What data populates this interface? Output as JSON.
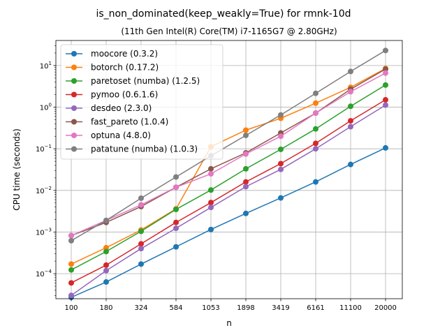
{
  "chart_data": {
    "type": "line",
    "title": "is_non_dominated(keep_weakly=True) for rmnk-10d",
    "subtitle": "(11th Gen Intel(R) Core(TM) i7-1165G7 @ 2.80GHz)",
    "xlabel": "n",
    "ylabel": "CPU time (seconds)",
    "y_scale": "log",
    "ylim": [
      2.5e-05,
      40
    ],
    "grid": true,
    "legend_position": "upper-left",
    "x": [
      100,
      180,
      324,
      584,
      1053,
      1898,
      3419,
      6161,
      11100,
      20000
    ],
    "x_tick_labels": [
      "100",
      "180",
      "324",
      "584",
      "1053",
      "1898",
      "3419",
      "6161",
      "11100",
      "20000"
    ],
    "y_ticks": [
      {
        "value": 0.0001,
        "label_base": "10",
        "label_exp": "−4"
      },
      {
        "value": 0.001,
        "label_base": "10",
        "label_exp": "−3"
      },
      {
        "value": 0.01,
        "label_base": "10",
        "label_exp": "−2"
      },
      {
        "value": 0.1,
        "label_base": "10",
        "label_exp": "−1"
      },
      {
        "value": 1,
        "label_base": "10",
        "label_exp": "0"
      },
      {
        "value": 10,
        "label_base": "10",
        "label_exp": "1"
      }
    ],
    "series": [
      {
        "name": "moocore (0.3.2)",
        "color": "#1f77b4",
        "values": [
          2.7e-05,
          6.3e-05,
          0.00017,
          0.00044,
          0.00115,
          0.0028,
          0.0066,
          0.016,
          0.042,
          0.105
        ]
      },
      {
        "name": "botorch (0.17.2)",
        "color": "#ff7f0e",
        "values": [
          0.00017,
          0.00042,
          0.00112,
          0.0036,
          0.112,
          0.28,
          0.54,
          1.25,
          3.0,
          8.5
        ]
      },
      {
        "name": "paretoset (numba) (1.2.5)",
        "color": "#2ca02c",
        "values": [
          0.000123,
          0.00034,
          0.00104,
          0.0035,
          0.0102,
          0.033,
          0.097,
          0.3,
          1.05,
          3.4
        ]
      },
      {
        "name": "pymoo (0.6.1.6)",
        "color": "#d62728",
        "values": [
          6e-05,
          0.00016,
          0.00052,
          0.0017,
          0.0051,
          0.016,
          0.044,
          0.135,
          0.47,
          1.5
        ]
      },
      {
        "name": "desdeo (2.3.0)",
        "color": "#9467bd",
        "values": [
          3e-05,
          0.000118,
          0.0004,
          0.00123,
          0.0039,
          0.0123,
          0.032,
          0.1,
          0.34,
          1.12
        ]
      },
      {
        "name": "fast_pareto (1.0.4)",
        "color": "#8c564b",
        "values": [
          0.00082,
          0.0017,
          0.0041,
          0.0119,
          0.033,
          0.08,
          0.24,
          0.72,
          2.7,
          8.2
        ]
      },
      {
        "name": "optuna (4.8.0)",
        "color": "#e377c2",
        "values": [
          0.00082,
          0.0019,
          0.0045,
          0.0119,
          0.025,
          0.075,
          0.2,
          0.72,
          2.35,
          6.6
        ]
      },
      {
        "name": "patatune (numba) (1.0.3)",
        "color": "#7f7f7f",
        "values": [
          0.00062,
          0.0019,
          0.0065,
          0.021,
          0.068,
          0.21,
          0.65,
          2.15,
          7.2,
          23
        ]
      }
    ]
  }
}
